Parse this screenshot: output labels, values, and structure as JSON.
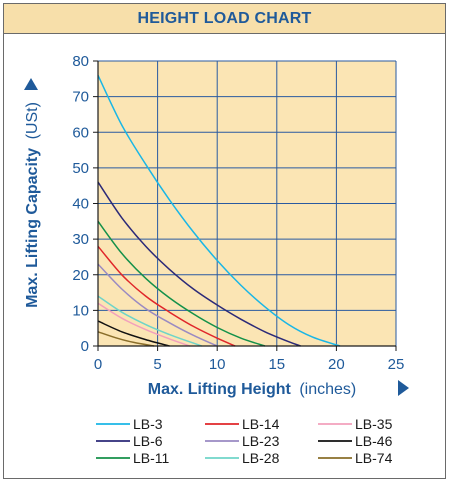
{
  "colors": {
    "accent": "#1f5a9a",
    "plot_bg": "#fbe5b4",
    "title_bg": "#f7dfaa",
    "grid": "#2a5aa0"
  },
  "chart_data": {
    "type": "line",
    "title": "HEIGHT LOAD CHART",
    "xlabel_bold": "Max. Lifting Height",
    "xlabel_unit": "(inches)",
    "ylabel_bold": "Max. Lifting Capacity",
    "ylabel_unit": "(USt)",
    "xlim": [
      0,
      25
    ],
    "ylim": [
      0,
      80
    ],
    "xticks": [
      0,
      5,
      10,
      15,
      20,
      25
    ],
    "yticks": [
      0,
      10,
      20,
      30,
      40,
      50,
      60,
      70,
      80
    ],
    "grid": true,
    "legend_position": "bottom",
    "series": [
      {
        "name": "LB-3",
        "color": "#19b6e6",
        "x": [
          0,
          2,
          4,
          6,
          8,
          10,
          12,
          14,
          16,
          18,
          20.3
        ],
        "y": [
          76,
          62,
          51,
          41,
          32,
          24,
          17,
          11,
          6,
          2.5,
          0
        ]
      },
      {
        "name": "LB-6",
        "color": "#2c2a78",
        "x": [
          0,
          2,
          4,
          6,
          8,
          10,
          12,
          14,
          16,
          17
        ],
        "y": [
          46,
          36,
          28,
          21.5,
          16,
          11.5,
          7.5,
          4,
          1.2,
          0
        ]
      },
      {
        "name": "LB-11",
        "color": "#14914a",
        "x": [
          0,
          2,
          4,
          6,
          8,
          10,
          12,
          14
        ],
        "y": [
          35,
          26,
          19,
          13.5,
          9,
          5.2,
          2.2,
          0
        ]
      },
      {
        "name": "LB-14",
        "color": "#e0262a",
        "x": [
          0,
          2,
          4,
          6,
          8,
          10,
          11.5
        ],
        "y": [
          28,
          20,
          14,
          9.5,
          5.5,
          2.2,
          0
        ]
      },
      {
        "name": "LB-23",
        "color": "#9a8ac2",
        "x": [
          0,
          2,
          4,
          6,
          8,
          10
        ],
        "y": [
          23,
          16,
          10.5,
          6.5,
          3,
          0
        ]
      },
      {
        "name": "LB-28",
        "color": "#6fd4c8",
        "x": [
          0,
          2,
          4,
          6,
          8,
          8.7
        ],
        "y": [
          14,
          9.5,
          6,
          3.2,
          0.8,
          0
        ]
      },
      {
        "name": "LB-35",
        "color": "#f2a0bc",
        "x": [
          0,
          2,
          4,
          6,
          7.7
        ],
        "y": [
          12,
          7.8,
          4.6,
          2,
          0
        ]
      },
      {
        "name": "LB-46",
        "color": "#111111",
        "x": [
          0,
          2,
          4,
          6
        ],
        "y": [
          7,
          4,
          1.8,
          0
        ]
      },
      {
        "name": "LB-74",
        "color": "#8a6e2a",
        "x": [
          0,
          1.5,
          3,
          4.7
        ],
        "y": [
          4,
          2.3,
          1,
          0
        ]
      }
    ]
  }
}
